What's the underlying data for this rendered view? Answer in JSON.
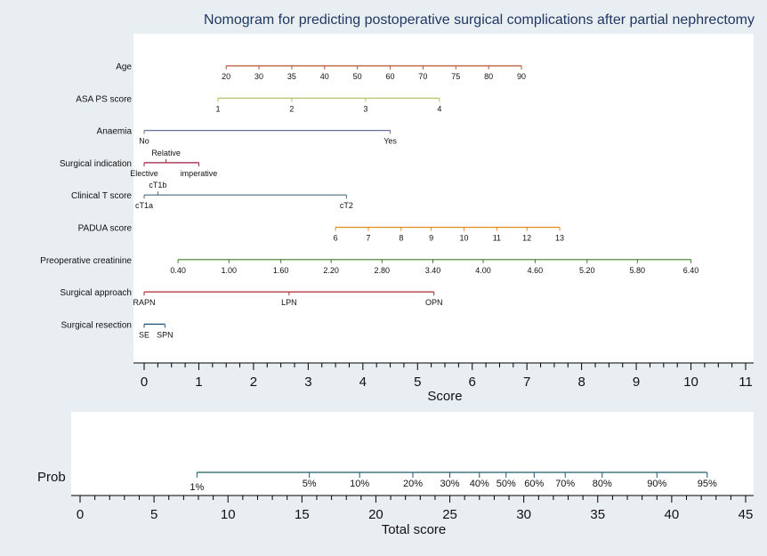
{
  "chart_data": {
    "type": "nomogram",
    "title": "Nomogram for predicting postoperative surgical complications after partial nephrectomy",
    "score_axis": {
      "label": "Score",
      "min": 0,
      "max": 11,
      "ticks": [
        0,
        1,
        2,
        3,
        4,
        5,
        6,
        7,
        8,
        9,
        10,
        11
      ]
    },
    "variables": [
      {
        "name": "Age",
        "color": "#b5542c",
        "points": [
          {
            "label": "20",
            "score": 1.5
          },
          {
            "label": "30",
            "score": 2.1
          },
          {
            "label": "35",
            "score": 2.7
          },
          {
            "label": "40",
            "score": 3.3
          },
          {
            "label": "50",
            "score": 3.9
          },
          {
            "label": "60",
            "score": 4.5
          },
          {
            "label": "70",
            "score": 5.1
          },
          {
            "label": "75",
            "score": 5.7
          },
          {
            "label": "80",
            "score": 6.3
          },
          {
            "label": "90",
            "score": 6.9
          }
        ]
      },
      {
        "name": "ASA PS score",
        "color": "#a8bf58",
        "points": [
          {
            "label": "1",
            "score": 1.35
          },
          {
            "label": "2",
            "score": 2.7
          },
          {
            "label": "3",
            "score": 4.05
          },
          {
            "label": "4",
            "score": 5.4
          }
        ]
      },
      {
        "name": "Anaemia",
        "color": "#6a6f9a",
        "points": [
          {
            "label": "No",
            "score": 0
          },
          {
            "label": "Yes",
            "score": 4.5
          }
        ]
      },
      {
        "name": "Surgical indication",
        "color": "#9b1b3a",
        "points": [
          {
            "label": "Elective",
            "score": 0,
            "pos": "below"
          },
          {
            "label": "Relative",
            "score": 0.4,
            "pos": "above"
          },
          {
            "label": "imperative",
            "score": 1.0,
            "pos": "below"
          }
        ]
      },
      {
        "name": "Clinical T score",
        "color": "#4a6b7c",
        "points": [
          {
            "label": "cT1a",
            "score": 0,
            "pos": "below"
          },
          {
            "label": "cT1b",
            "score": 0.25,
            "pos": "above"
          },
          {
            "label": "cT2",
            "score": 3.7,
            "pos": "below"
          }
        ]
      },
      {
        "name": "PADUA score",
        "color": "#e28a1a",
        "points": [
          {
            "label": "6",
            "score": 3.5
          },
          {
            "label": "7",
            "score": 4.1
          },
          {
            "label": "8",
            "score": 4.7
          },
          {
            "label": "9",
            "score": 5.25
          },
          {
            "label": "10",
            "score": 5.85
          },
          {
            "label": "11",
            "score": 6.45
          },
          {
            "label": "12",
            "score": 7.0
          },
          {
            "label": "13",
            "score": 7.6
          }
        ]
      },
      {
        "name": "Preoperative creatinine",
        "color": "#3d7a2a",
        "points": [
          {
            "label": "0.40",
            "score": 0.62
          },
          {
            "label": "1.00",
            "score": 1.55
          },
          {
            "label": "1.60",
            "score": 2.5
          },
          {
            "label": "2.20",
            "score": 3.42
          },
          {
            "label": "2.80",
            "score": 4.35
          },
          {
            "label": "3.40",
            "score": 5.28
          },
          {
            "label": "4.00",
            "score": 6.2
          },
          {
            "label": "4.60",
            "score": 7.15
          },
          {
            "label": "5.20",
            "score": 8.1
          },
          {
            "label": "5.80",
            "score": 9.02
          },
          {
            "label": "6.40",
            "score": 10.0
          }
        ]
      },
      {
        "name": "Surgical approach",
        "color": "#b02a2a",
        "points": [
          {
            "label": "RAPN",
            "score": 0
          },
          {
            "label": "LPN",
            "score": 2.65
          },
          {
            "label": "OPN",
            "score": 5.3
          }
        ]
      },
      {
        "name": "Surgical resection",
        "color": "#1f4e79",
        "points": [
          {
            "label": "SE",
            "score": 0
          },
          {
            "label": "SPN",
            "score": 0.38
          }
        ]
      }
    ],
    "total_axis": {
      "label": "Total score",
      "min": 0,
      "max": 45,
      "ticks": [
        0,
        5,
        10,
        15,
        20,
        25,
        30,
        35,
        40,
        45
      ]
    },
    "prob_axis": {
      "label": "Prob",
      "color": "#1f5b6e",
      "points": [
        {
          "label": "1%",
          "total": 7.9,
          "pos": "below"
        },
        {
          "label": "5%",
          "total": 15.5,
          "pos": "above"
        },
        {
          "label": "10%",
          "total": 18.9,
          "pos": "above"
        },
        {
          "label": "20%",
          "total": 22.5,
          "pos": "above"
        },
        {
          "label": "30%",
          "total": 25.0,
          "pos": "above"
        },
        {
          "label": "40%",
          "total": 27.0,
          "pos": "above"
        },
        {
          "label": "50%",
          "total": 28.8,
          "pos": "above"
        },
        {
          "label": "60%",
          "total": 30.7,
          "pos": "above"
        },
        {
          "label": "70%",
          "total": 32.8,
          "pos": "above"
        },
        {
          "label": "80%",
          "total": 35.3,
          "pos": "above"
        },
        {
          "label": "90%",
          "total": 39.0,
          "pos": "above"
        },
        {
          "label": "95%",
          "total": 42.4,
          "pos": "above"
        }
      ]
    }
  }
}
